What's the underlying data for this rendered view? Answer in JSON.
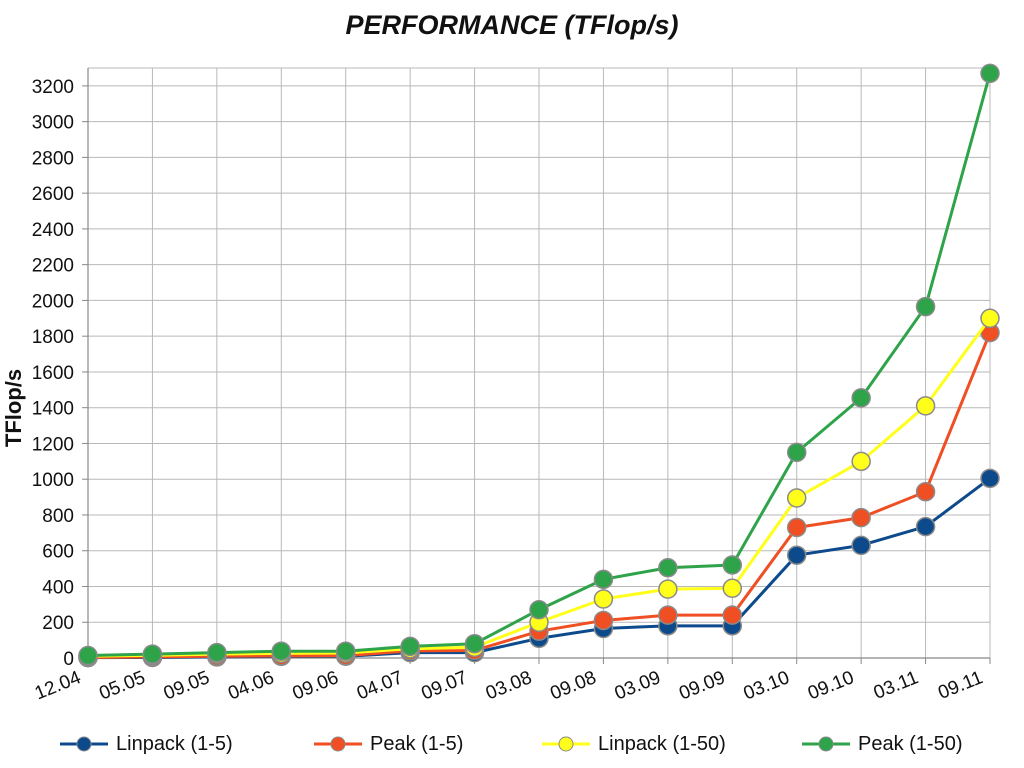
{
  "chart_data": {
    "type": "line",
    "title": "PERFORMANCE (TFlop/s)",
    "xlabel": "",
    "ylabel": "TFlop/s",
    "ylim": [
      0,
      3300
    ],
    "yticks": [
      0,
      200,
      400,
      600,
      800,
      1000,
      1200,
      1400,
      1600,
      1800,
      2000,
      2200,
      2400,
      2600,
      2800,
      3000,
      3200
    ],
    "grid": true,
    "legend_position": "bottom",
    "categories": [
      "12.04",
      "05.05",
      "09.05",
      "04.06",
      "09.06",
      "04.07",
      "09.07",
      "03.08",
      "09.08",
      "03.09",
      "09.09",
      "03.10",
      "09.10",
      "03.11",
      "09.11"
    ],
    "series": [
      {
        "name": "Linpack (1-5)",
        "color": "#0d4a8c",
        "values": [
          2,
          3,
          6,
          9,
          10,
          30,
          30,
          110,
          165,
          180,
          180,
          575,
          630,
          735,
          1005
        ]
      },
      {
        "name": "Peak (1-5)",
        "color": "#f04e23",
        "values": [
          3,
          6,
          10,
          12,
          13,
          40,
          42,
          150,
          210,
          240,
          240,
          730,
          785,
          930,
          1820
        ]
      },
      {
        "name": "Linpack (1-50)",
        "color": "#ffff1a",
        "values": [
          10,
          15,
          22,
          26,
          28,
          52,
          60,
          200,
          330,
          385,
          390,
          895,
          1100,
          1410,
          1900
        ]
      },
      {
        "name": "Peak (1-50)",
        "color": "#2ea34a",
        "values": [
          14,
          22,
          30,
          38,
          38,
          65,
          80,
          270,
          440,
          505,
          520,
          1150,
          1455,
          1965,
          3270
        ]
      }
    ]
  }
}
